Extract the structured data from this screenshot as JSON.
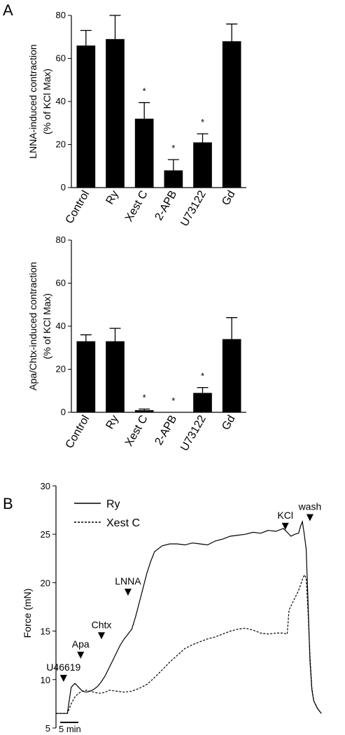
{
  "panel_labels": {
    "a": "A",
    "b": "B"
  },
  "chart_data": [
    {
      "type": "bar",
      "ylabel_line1": "LNNA-induced contraction",
      "ylabel_line2": "(% of KCl Max)",
      "ylim": [
        0,
        80
      ],
      "yticks": [
        "0",
        "20",
        "40",
        "60",
        "80"
      ],
      "categories": [
        "Control",
        "Ry",
        "Xest C",
        "2-APB",
        "U73122",
        "Gd"
      ],
      "values": [
        66,
        69,
        32,
        8,
        21,
        68
      ],
      "errors": [
        7,
        11,
        7.5,
        5,
        4,
        8
      ],
      "significance": [
        "",
        "",
        "*",
        "*",
        "*",
        ""
      ],
      "bar_color": "#000000"
    },
    {
      "type": "bar",
      "ylabel_line1": "Apa/Chtx-induced contraction",
      "ylabel_line2": "(% of KCl Max)",
      "ylim": [
        0,
        80
      ],
      "yticks": [
        "0",
        "20",
        "40",
        "60",
        "80"
      ],
      "categories": [
        "Control",
        "Ry",
        "Xest C",
        "2-APB",
        "U73122",
        "Gd"
      ],
      "values": [
        33,
        33,
        1,
        0,
        9,
        34
      ],
      "errors": [
        3,
        6,
        0.5,
        0,
        2.5,
        10
      ],
      "significance": [
        "",
        "",
        "*",
        "*",
        "*",
        ""
      ],
      "bar_color": "#000000"
    },
    {
      "type": "line",
      "ylabel": "Force (mN)",
      "ylim": [
        5,
        30
      ],
      "yticks": [
        "5",
        "10",
        "15",
        "20",
        "25",
        "30"
      ],
      "scale_bar_label": "5 min",
      "legend": [
        {
          "name": "Ry",
          "style": "solid"
        },
        {
          "name": "Xest C",
          "style": "dashed"
        }
      ],
      "annotations": [
        {
          "label": "U46619",
          "t": 2,
          "y": 9.9
        },
        {
          "label": "Apa",
          "t": 6.5,
          "y": 12.3
        },
        {
          "label": "Chtx",
          "t": 12,
          "y": 14.3
        },
        {
          "label": "LNNA",
          "t": 19,
          "y": 18.8
        },
        {
          "label": "KCl",
          "t": 60.5,
          "y": 25.6
        },
        {
          "label": "wash",
          "t": 67,
          "y": 26.5
        }
      ],
      "series": [
        {
          "name": "Ry",
          "x": [
            0,
            3,
            4,
            5,
            6,
            7,
            8,
            9,
            10,
            11,
            12,
            13,
            14,
            15,
            16,
            17,
            18,
            19,
            20,
            21,
            22,
            23,
            24,
            25,
            26,
            28,
            30,
            32,
            34,
            36,
            38,
            40,
            42,
            44,
            46,
            48,
            50,
            52,
            54,
            56,
            58,
            60,
            61,
            62,
            63,
            64,
            64.5,
            65,
            65.5,
            66,
            66.5,
            67,
            67.5,
            68,
            69,
            70
          ],
          "y": [
            6.5,
            6.5,
            9.2,
            9.6,
            9.2,
            8.8,
            8.7,
            8.8,
            9.0,
            9.3,
            9.8,
            10.4,
            11.2,
            12.0,
            12.8,
            13.6,
            14.2,
            14.7,
            15.2,
            16.5,
            18.0,
            19.5,
            21.0,
            22.2,
            23.2,
            23.8,
            24.0,
            24.0,
            23.9,
            24.1,
            24.0,
            23.9,
            24.3,
            24.5,
            24.8,
            24.9,
            25.0,
            25.2,
            25.1,
            25.4,
            25.3,
            25.6,
            25.2,
            24.8,
            25.0,
            25.1,
            25.8,
            26.3,
            25.0,
            23.5,
            18.0,
            12.0,
            9.0,
            7.8,
            7.0,
            6.5
          ]
        },
        {
          "name": "Xest C",
          "x": [
            0,
            3,
            4,
            5,
            6,
            7,
            8,
            9,
            10,
            11,
            12,
            13,
            14,
            16,
            18,
            20,
            22,
            24,
            26,
            28,
            30,
            32,
            34,
            36,
            38,
            40,
            42,
            44,
            46,
            48,
            50,
            52,
            54,
            56,
            58,
            60,
            61,
            61.5,
            62,
            63,
            64,
            65,
            65.5,
            66,
            66.5,
            67,
            67.5,
            68,
            69,
            70
          ],
          "y": [
            6.5,
            6.5,
            7.5,
            8.2,
            8.6,
            8.8,
            8.9,
            8.8,
            8.7,
            8.6,
            8.6,
            8.7,
            8.9,
            8.8,
            8.7,
            8.8,
            9.1,
            9.5,
            10.2,
            11.0,
            11.8,
            12.5,
            13.2,
            13.6,
            13.9,
            14.2,
            14.4,
            14.7,
            15.0,
            15.2,
            15.3,
            15.1,
            14.8,
            14.7,
            14.8,
            14.8,
            14.7,
            17.2,
            17.6,
            18.4,
            19.2,
            20.3,
            20.8,
            20.5,
            17.0,
            12.5,
            9.2,
            7.8,
            7.0,
            6.5
          ]
        }
      ]
    }
  ]
}
